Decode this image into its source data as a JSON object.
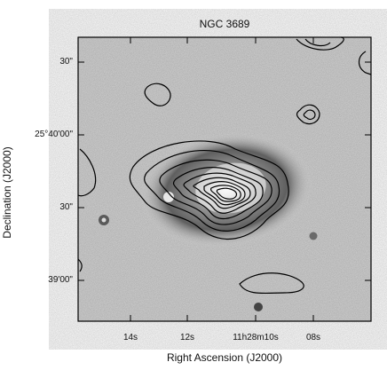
{
  "figure": {
    "title": "NGC 3689",
    "xlabel": "Right Ascension (J2000)",
    "ylabel": "Declination (J2000)",
    "y_ticks": [
      "30\"",
      "25°40'00\"",
      "30\"",
      "39'00\""
    ],
    "x_ticks": [
      "14s",
      "12s",
      "11h28m10s",
      "08s"
    ],
    "content": "grayscale galaxy image with overlaid black contours"
  }
}
